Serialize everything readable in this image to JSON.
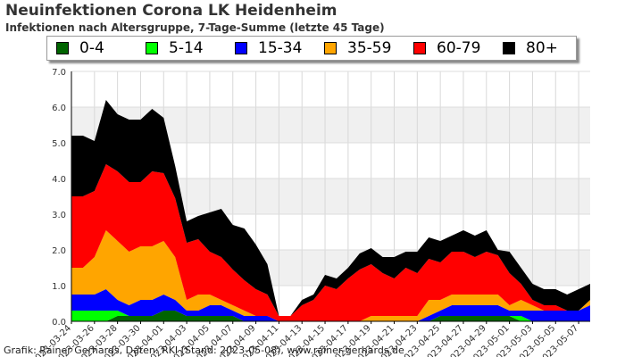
{
  "header": {
    "title": "Neuinfektionen Corona LK Heidenheim",
    "subtitle": "Infektionen nach Altersgruppe, 7-Tage-Summe (letzte 45 Tage)"
  },
  "footer": {
    "credit": "Grafik: Rainer Gerhards, Daten: RKI (Stand: 2023-05-08), www.rainer-gerhards.de"
  },
  "chart_data": {
    "type": "area",
    "stacked": true,
    "grid": true,
    "legend_position": "top",
    "ylim": [
      0,
      7
    ],
    "y_ticks": [
      "0.0",
      "1.0",
      "2.0",
      "3.0",
      "4.0",
      "5.0",
      "6.0",
      "7.0"
    ],
    "x": [
      "2023-03-24",
      "2023-03-25",
      "2023-03-26",
      "2023-03-27",
      "2023-03-28",
      "2023-03-29",
      "2023-03-30",
      "2023-03-31",
      "2023-04-01",
      "2023-04-02",
      "2023-04-03",
      "2023-04-04",
      "2023-04-05",
      "2023-04-06",
      "2023-04-07",
      "2023-04-08",
      "2023-04-09",
      "2023-04-10",
      "2023-04-11",
      "2023-04-12",
      "2023-04-13",
      "2023-04-14",
      "2023-04-15",
      "2023-04-16",
      "2023-04-17",
      "2023-04-18",
      "2023-04-19",
      "2023-04-20",
      "2023-04-21",
      "2023-04-22",
      "2023-04-23",
      "2023-04-24",
      "2023-04-25",
      "2023-04-26",
      "2023-04-27",
      "2023-04-28",
      "2023-04-29",
      "2023-04-30",
      "2023-05-01",
      "2023-05-02",
      "2023-05-03",
      "2023-05-04",
      "2023-05-05",
      "2023-05-06",
      "2023-05-07",
      "2023-05-08"
    ],
    "x_tick_labels": [
      "2023-03-24",
      "2023-03-26",
      "2023-03-28",
      "2023-03-30",
      "2023-04-01",
      "2023-04-03",
      "2023-04-05",
      "2023-04-07",
      "2023-04-09",
      "2023-04-11",
      "2023-04-13",
      "2023-04-15",
      "2023-04-17",
      "2023-04-19",
      "2023-04-21",
      "2023-04-23",
      "2023-04-25",
      "2023-04-27",
      "2023-04-29",
      "2023-05-01",
      "2023-05-03",
      "2023-05-05",
      "2023-05-07"
    ],
    "series": [
      {
        "name": "0-4",
        "color": "#006400",
        "values": [
          0,
          0,
          0,
          0,
          0.15,
          0.15,
          0.15,
          0.15,
          0.3,
          0.3,
          0.15,
          0.15,
          0.15,
          0.15,
          0.15,
          0,
          0,
          0,
          0,
          0,
          0,
          0,
          0,
          0,
          0,
          0,
          0,
          0,
          0,
          0,
          0,
          0,
          0.15,
          0.15,
          0.15,
          0.15,
          0.15,
          0.15,
          0.15,
          0,
          0,
          0,
          0,
          0,
          0,
          0
        ]
      },
      {
        "name": "5-14",
        "color": "#00ff00",
        "values": [
          0.3,
          0.3,
          0.3,
          0.3,
          0.15,
          0,
          0,
          0,
          0,
          0,
          0,
          0,
          0,
          0,
          0,
          0,
          0,
          0,
          0,
          0,
          0,
          0,
          0,
          0,
          0,
          0,
          0,
          0,
          0,
          0,
          0,
          0,
          0,
          0,
          0,
          0,
          0,
          0,
          0,
          0.15,
          0,
          0,
          0,
          0,
          0,
          0
        ]
      },
      {
        "name": "15-34",
        "color": "#0000ff",
        "values": [
          0.45,
          0.45,
          0.45,
          0.6,
          0.3,
          0.3,
          0.45,
          0.45,
          0.45,
          0.3,
          0.15,
          0.15,
          0.3,
          0.3,
          0.15,
          0.15,
          0.15,
          0.15,
          0,
          0,
          0,
          0,
          0,
          0,
          0,
          0,
          0,
          0,
          0,
          0,
          0,
          0.15,
          0.15,
          0.3,
          0.3,
          0.3,
          0.3,
          0.3,
          0.15,
          0.15,
          0.3,
          0.3,
          0.3,
          0.3,
          0.3,
          0.45
        ]
      },
      {
        "name": "35-59",
        "color": "#ffa500",
        "values": [
          0.75,
          0.75,
          1.05,
          1.65,
          1.65,
          1.5,
          1.5,
          1.5,
          1.5,
          1.2,
          0.3,
          0.45,
          0.3,
          0.15,
          0.15,
          0.15,
          0,
          0,
          0,
          0,
          0,
          0,
          0,
          0,
          0,
          0,
          0.15,
          0.15,
          0.15,
          0.15,
          0.15,
          0.45,
          0.3,
          0.3,
          0.3,
          0.3,
          0.3,
          0.3,
          0.15,
          0.3,
          0.15,
          0,
          0,
          0,
          0,
          0.15
        ]
      },
      {
        "name": "60-79",
        "color": "#ff0000",
        "values": [
          2.0,
          2.0,
          1.85,
          1.85,
          1.95,
          1.95,
          1.8,
          2.1,
          1.9,
          1.65,
          1.6,
          1.55,
          1.2,
          1.2,
          1.0,
          0.85,
          0.75,
          0.6,
          0.15,
          0.15,
          0.45,
          0.6,
          1.0,
          0.9,
          1.2,
          1.45,
          1.45,
          1.2,
          1.05,
          1.35,
          1.2,
          1.15,
          1.05,
          1.2,
          1.2,
          1.05,
          1.2,
          1.1,
          0.9,
          0.45,
          0.15,
          0.15,
          0.15,
          0,
          0,
          0
        ]
      },
      {
        "name": "80+",
        "color": "#000000",
        "values": [
          1.7,
          1.7,
          1.4,
          1.8,
          1.6,
          1.75,
          1.75,
          1.75,
          1.55,
          0.9,
          0.6,
          0.65,
          1.1,
          1.35,
          1.25,
          1.45,
          1.25,
          0.85,
          0,
          0,
          0.15,
          0.15,
          0.3,
          0.3,
          0.3,
          0.45,
          0.45,
          0.45,
          0.6,
          0.45,
          0.6,
          0.6,
          0.6,
          0.45,
          0.6,
          0.6,
          0.6,
          0.15,
          0.6,
          0.45,
          0.45,
          0.45,
          0.45,
          0.45,
          0.6,
          0.45
        ]
      }
    ]
  }
}
